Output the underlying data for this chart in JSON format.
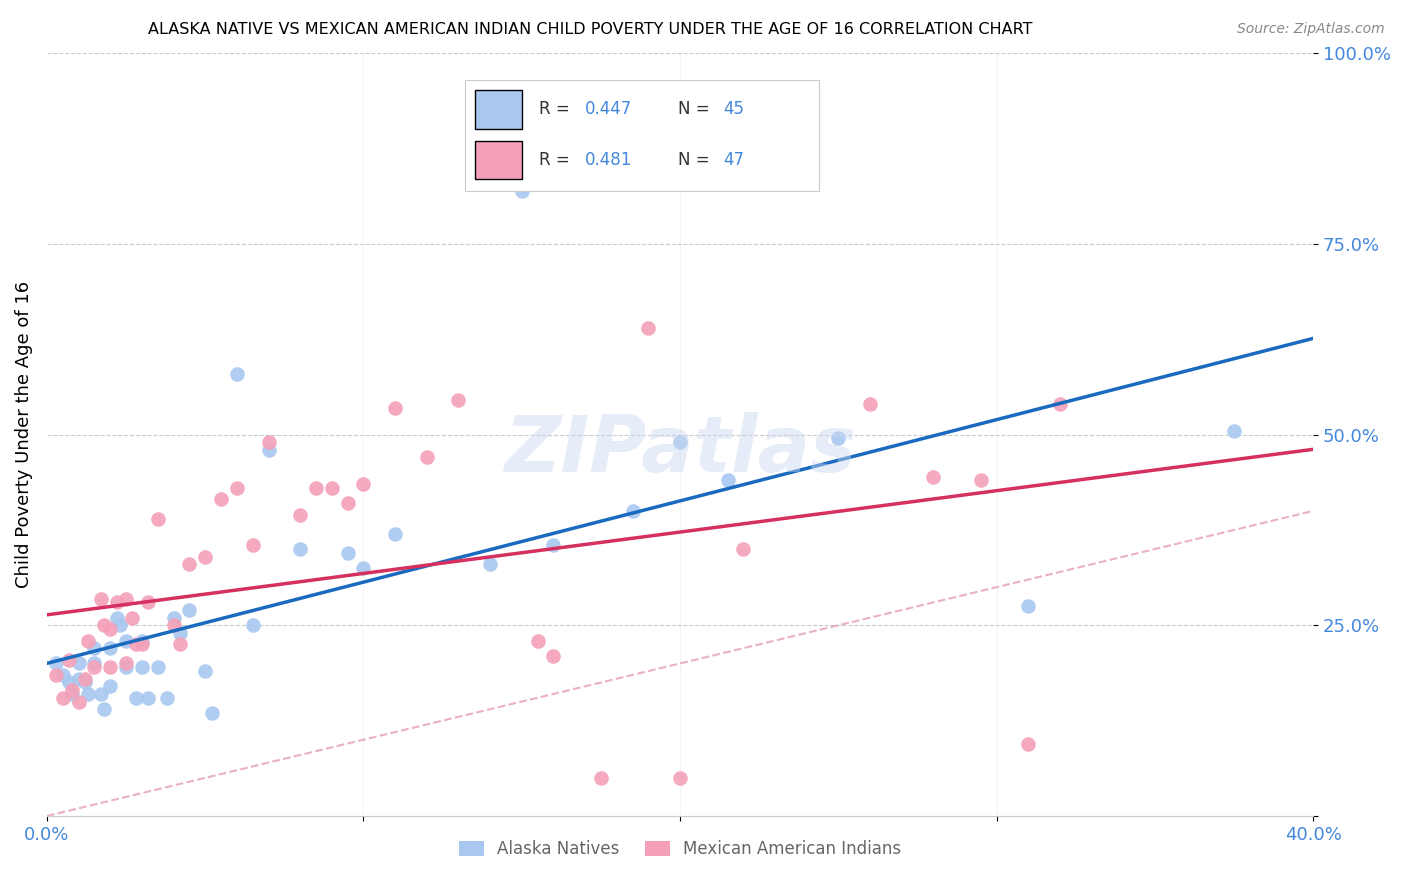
{
  "title": "ALASKA NATIVE VS MEXICAN AMERICAN INDIAN CHILD POVERTY UNDER THE AGE OF 16 CORRELATION CHART",
  "source": "Source: ZipAtlas.com",
  "ylabel": "Child Poverty Under the Age of 16",
  "xlim": [
    0.0,
    0.4
  ],
  "ylim": [
    0.0,
    1.0
  ],
  "ytick_vals": [
    0.0,
    0.25,
    0.5,
    0.75,
    1.0
  ],
  "ytick_labels": [
    "",
    "25.0%",
    "50.0%",
    "75.0%",
    "100.0%"
  ],
  "xtick_vals": [
    0.0,
    0.1,
    0.2,
    0.3,
    0.4
  ],
  "xtick_labels": [
    "0.0%",
    "",
    "",
    "",
    "40.0%"
  ],
  "alaska_color": "#a8c8f0",
  "mexican_color": "#f4a0b8",
  "alaska_line_color": "#1a6bbf",
  "mexican_line_color": "#d63060",
  "diag_color": "#e8a0b8",
  "tick_color": "#4488dd",
  "alaska_R": "0.447",
  "alaska_N": "45",
  "mexican_R": "0.481",
  "mexican_N": "47",
  "legend_label_alaska": "Alaska Natives",
  "legend_label_mexican": "Mexican American Indians",
  "watermark": "ZIPatlas",
  "alaska_scatter_x": [
    0.003,
    0.005,
    0.007,
    0.008,
    0.01,
    0.01,
    0.012,
    0.013,
    0.015,
    0.015,
    0.017,
    0.018,
    0.02,
    0.02,
    0.022,
    0.023,
    0.025,
    0.025,
    0.028,
    0.03,
    0.03,
    0.032,
    0.035,
    0.038,
    0.04,
    0.042,
    0.045,
    0.05,
    0.052,
    0.06,
    0.065,
    0.07,
    0.08,
    0.095,
    0.1,
    0.11,
    0.14,
    0.15,
    0.16,
    0.185,
    0.2,
    0.215,
    0.25,
    0.31,
    0.375
  ],
  "alaska_scatter_y": [
    0.2,
    0.185,
    0.175,
    0.16,
    0.2,
    0.18,
    0.175,
    0.16,
    0.22,
    0.2,
    0.16,
    0.14,
    0.22,
    0.17,
    0.26,
    0.25,
    0.23,
    0.195,
    0.155,
    0.23,
    0.195,
    0.155,
    0.195,
    0.155,
    0.26,
    0.24,
    0.27,
    0.19,
    0.135,
    0.58,
    0.25,
    0.48,
    0.35,
    0.345,
    0.325,
    0.37,
    0.33,
    0.82,
    0.355,
    0.4,
    0.49,
    0.44,
    0.495,
    0.275,
    0.505
  ],
  "mexican_scatter_x": [
    0.003,
    0.005,
    0.007,
    0.008,
    0.01,
    0.012,
    0.013,
    0.015,
    0.017,
    0.018,
    0.02,
    0.02,
    0.022,
    0.025,
    0.025,
    0.027,
    0.028,
    0.03,
    0.032,
    0.035,
    0.04,
    0.042,
    0.045,
    0.05,
    0.055,
    0.06,
    0.065,
    0.07,
    0.08,
    0.085,
    0.09,
    0.095,
    0.1,
    0.11,
    0.12,
    0.13,
    0.155,
    0.16,
    0.175,
    0.19,
    0.2,
    0.22,
    0.26,
    0.28,
    0.295,
    0.31,
    0.32
  ],
  "mexican_scatter_y": [
    0.185,
    0.155,
    0.205,
    0.165,
    0.15,
    0.18,
    0.23,
    0.195,
    0.285,
    0.25,
    0.195,
    0.245,
    0.28,
    0.2,
    0.285,
    0.26,
    0.225,
    0.225,
    0.28,
    0.39,
    0.25,
    0.225,
    0.33,
    0.34,
    0.415,
    0.43,
    0.355,
    0.49,
    0.395,
    0.43,
    0.43,
    0.41,
    0.435,
    0.535,
    0.47,
    0.545,
    0.23,
    0.21,
    0.05,
    0.64,
    0.05,
    0.35,
    0.54,
    0.445,
    0.44,
    0.095,
    0.54
  ]
}
